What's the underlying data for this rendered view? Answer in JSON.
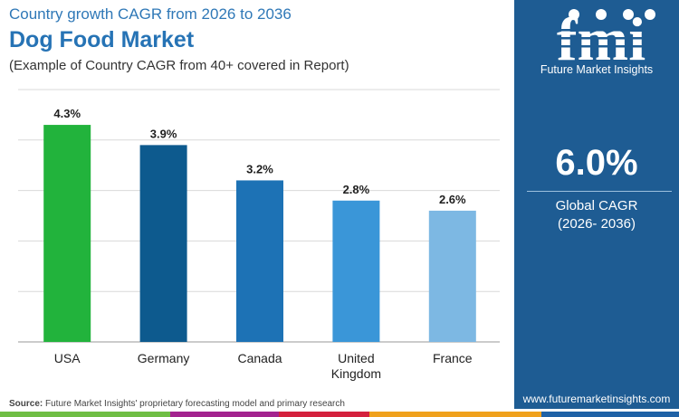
{
  "header": {
    "subtitle": "Country growth CAGR from 2026 to 2036",
    "title": "Dog Food Market",
    "note": "(Example of Country CAGR from 40+ covered in Report)"
  },
  "chart_data": {
    "type": "bar",
    "title": "Dog Food Market",
    "subtitle": "Country growth CAGR from 2026 to 2036",
    "categories": [
      "USA",
      "Germany",
      "Canada",
      "United Kingdom",
      "France"
    ],
    "category_lines": [
      [
        "USA"
      ],
      [
        "Germany"
      ],
      [
        "Canada"
      ],
      [
        "United",
        "Kingdom"
      ],
      [
        "France"
      ]
    ],
    "values": [
      4.3,
      3.9,
      3.2,
      2.8,
      2.6
    ],
    "value_labels": [
      "4.3%",
      "3.9%",
      "3.2%",
      "2.8%",
      "2.6%"
    ],
    "bar_colors": [
      "#22b33c",
      "#0d5a8e",
      "#1d72b5",
      "#3a96d8",
      "#7db8e3"
    ],
    "ylim": [
      0,
      5
    ],
    "grid": true,
    "legend": "none",
    "xlabel": "",
    "ylabel": ""
  },
  "sidebar": {
    "logo_text": "fmi",
    "logo_caption": "Future Market Insights",
    "cagr_value": "6.0%",
    "cagr_label": "Global CAGR",
    "cagr_period": "(2026- 2036)",
    "website": "www.futuremarketinsights.com",
    "background": "#1e5c93"
  },
  "footer": {
    "source_label": "Source:",
    "source_text": "Future Market Insights' proprietary forecasting model and primary research",
    "stripe_colors": [
      "#6fbe44",
      "#a3238e",
      "#d4213d",
      "#f0a11c",
      "#1f62a6"
    ]
  }
}
